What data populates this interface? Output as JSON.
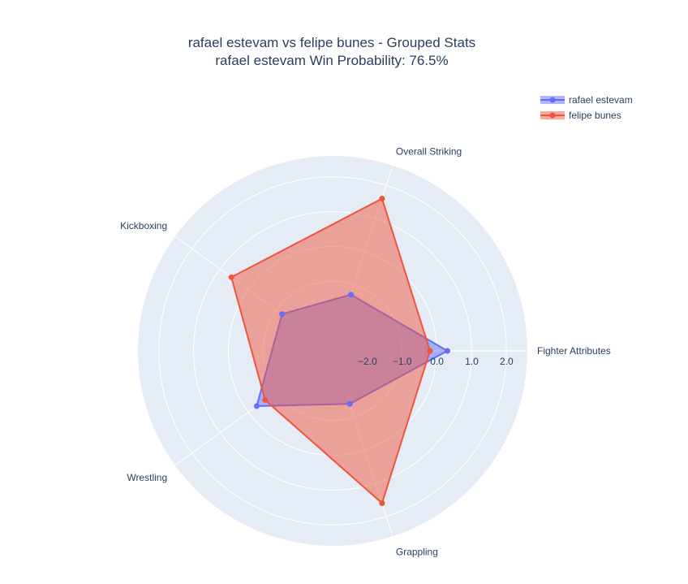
{
  "chart_data": {
    "type": "radar",
    "title": "rafael estevam vs felipe bunes - Grouped Stats",
    "subtitle": "rafael estevam Win Probability: 76.5%",
    "categories": [
      "Fighter Attributes",
      "Overall Striking",
      "Kickboxing",
      "Wrestling",
      "Grappling"
    ],
    "radial_range": [
      -3.0,
      2.6
    ],
    "radial_ticks": [
      -2.0,
      -1.0,
      0.0,
      1.0,
      2.0
    ],
    "radial_tick_labels": [
      "−2.0",
      "−1.0",
      "0.0",
      "1.0",
      "2.0"
    ],
    "legend_position": "top-right",
    "series": [
      {
        "name": "rafael estevam",
        "values": [
          0.3,
          -1.3,
          -1.2,
          -0.3,
          -1.4
        ],
        "color": "#636efa"
      },
      {
        "name": "felipe bunes",
        "values": [
          -0.2,
          1.6,
          0.6,
          -0.6,
          1.6
        ],
        "color": "#ef553b"
      }
    ]
  }
}
